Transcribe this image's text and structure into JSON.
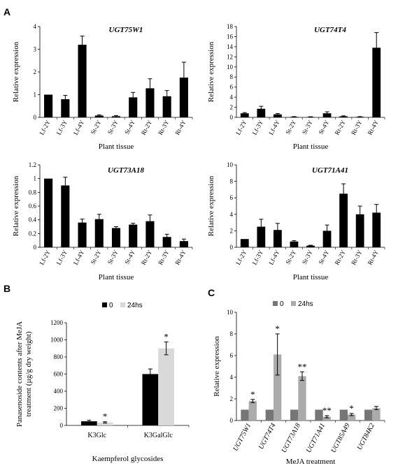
{
  "panel_labels": [
    "A",
    "B",
    "C"
  ],
  "chart_data": [
    {
      "type": "bar",
      "panel": "A",
      "title": "UGT75W1",
      "xlabel": "Plant tissue",
      "ylabel": "Relative expression",
      "ylim": [
        0,
        4
      ],
      "yticks": [
        "0",
        "1",
        "2",
        "3",
        "4"
      ],
      "categories": [
        "Lf-2Y",
        "Lf-3Y",
        "Lf-4Y",
        "St-2Y",
        "St-3Y",
        "St-4Y",
        "Rt-2Y",
        "Rt-3Y",
        "Rt-4Y"
      ],
      "values": [
        1.0,
        0.8,
        3.2,
        0.08,
        0.05,
        0.88,
        1.28,
        0.93,
        1.75
      ],
      "errors": [
        0,
        0.17,
        0.38,
        0.03,
        0.03,
        0.22,
        0.42,
        0.25,
        0.68
      ],
      "grid": false
    },
    {
      "type": "bar",
      "panel": "A",
      "title": "UGT74T4",
      "xlabel": "Plant tissue",
      "ylabel": "Relative expression",
      "ylim": [
        0,
        18
      ],
      "yticks": [
        "0",
        "2",
        "4",
        "6",
        "8",
        "10",
        "12",
        "14",
        "16",
        "18"
      ],
      "categories": [
        "Lf-2Y",
        "Lf-3Y",
        "Lf-4Y",
        "St-2Y",
        "St-3Y",
        "St-4Y",
        "Rt-2Y",
        "Rt-3Y",
        "Rt-4Y"
      ],
      "values": [
        0.8,
        1.7,
        0.6,
        0.1,
        0.08,
        0.8,
        0.2,
        0.1,
        13.8
      ],
      "errors": [
        0.15,
        0.5,
        0.15,
        0.05,
        0.05,
        0.3,
        0.1,
        0.05,
        3.0
      ],
      "grid": false
    },
    {
      "type": "bar",
      "panel": "A",
      "title": "UGT73A18",
      "xlabel": "Plant tissue",
      "ylabel": "Relative expression",
      "ylim": [
        0,
        1.2
      ],
      "yticks": [
        "0",
        "0.2",
        "0.4",
        "0.6",
        "0.8",
        "1",
        "1.2"
      ],
      "categories": [
        "Lf-2Y",
        "Lf-3Y",
        "Lf-4Y",
        "St-2Y",
        "St-3Y",
        "St-4Y",
        "Rt-2Y",
        "Rt-3Y",
        "Rt-4Y"
      ],
      "values": [
        1.0,
        0.9,
        0.36,
        0.41,
        0.28,
        0.33,
        0.38,
        0.15,
        0.09
      ],
      "errors": [
        0,
        0.12,
        0.05,
        0.07,
        0.02,
        0.02,
        0.09,
        0.04,
        0.03
      ],
      "grid": false
    },
    {
      "type": "bar",
      "panel": "A",
      "title": "UGT71A41",
      "xlabel": "Plant tissue",
      "ylabel": "Relative expression",
      "ylim": [
        0,
        10
      ],
      "yticks": [
        "0",
        "2",
        "4",
        "6",
        "8",
        "10"
      ],
      "categories": [
        "Lf-2Y",
        "Lf-3Y",
        "Lf-4Y",
        "St-2Y",
        "St-3Y",
        "St-4Y",
        "Rt-2Y",
        "Rt-3Y",
        "Rt-4Y"
      ],
      "values": [
        1.0,
        2.5,
        2.1,
        0.7,
        0.2,
        2.0,
        6.5,
        4.0,
        4.2
      ],
      "errors": [
        0,
        0.9,
        0.8,
        0.1,
        0.05,
        0.7,
        1.2,
        1.0,
        1.0
      ],
      "grid": false
    },
    {
      "type": "bar",
      "panel": "B",
      "title": "",
      "xlabel": "Kaempferol glycosides",
      "ylabel_lines": [
        "Panasenoside contents after MeJA",
        "treatment (µg/g dry weight)"
      ],
      "ylim": [
        0,
        1200
      ],
      "yticks": [
        "0",
        "200",
        "400",
        "600",
        "800",
        "1000",
        "1200"
      ],
      "categories": [
        "K3Glc",
        "K3GalGlc"
      ],
      "legend_position": "top",
      "series": [
        {
          "name": "0",
          "color": "#000000",
          "values": [
            48,
            600
          ],
          "errors": [
            12,
            60
          ]
        },
        {
          "name": "24hs",
          "color": "#d9d9d9",
          "values": [
            35,
            900
          ],
          "errors": [
            8,
            75
          ]
        }
      ],
      "annotations": [
        {
          "text": "*",
          "category": "K3Glc",
          "series": "24hs"
        },
        {
          "text": "*",
          "category": "K3GalGlc",
          "series": "24hs"
        }
      ],
      "grid": false
    },
    {
      "type": "bar",
      "panel": "C",
      "title": "",
      "xlabel": "MeJA treatment",
      "ylabel": "Relative expression",
      "ylim": [
        0,
        10
      ],
      "yticks": [
        "0",
        "2",
        "4",
        "6",
        "8",
        "10"
      ],
      "categories": [
        "UGT75W1",
        "UGT74T4",
        "UGT73A18",
        "UGT71A41",
        "UGT85A49",
        "UGT84K2"
      ],
      "legend_position": "top",
      "series": [
        {
          "name": "0",
          "color": "#767676",
          "values": [
            1,
            1,
            1,
            1,
            1,
            1
          ],
          "errors": [
            0,
            0,
            0,
            0,
            0,
            0
          ]
        },
        {
          "name": "24hs",
          "color": "#ababab",
          "values": [
            1.8,
            6.1,
            4.1,
            0.35,
            0.55,
            1.15
          ],
          "errors": [
            0.15,
            1.9,
            0.4,
            0.1,
            0.1,
            0.15
          ]
        }
      ],
      "annotations": [
        {
          "text": "*",
          "category": "UGT75W1",
          "series": "24hs"
        },
        {
          "text": "*",
          "category": "UGT74T4",
          "series": "24hs"
        },
        {
          "text": "**",
          "category": "UGT73A18",
          "series": "24hs"
        },
        {
          "text": "**",
          "category": "UGT71A41",
          "series": "24hs"
        },
        {
          "text": "*",
          "category": "UGT85A49",
          "series": "24hs"
        }
      ],
      "grid": false
    }
  ]
}
